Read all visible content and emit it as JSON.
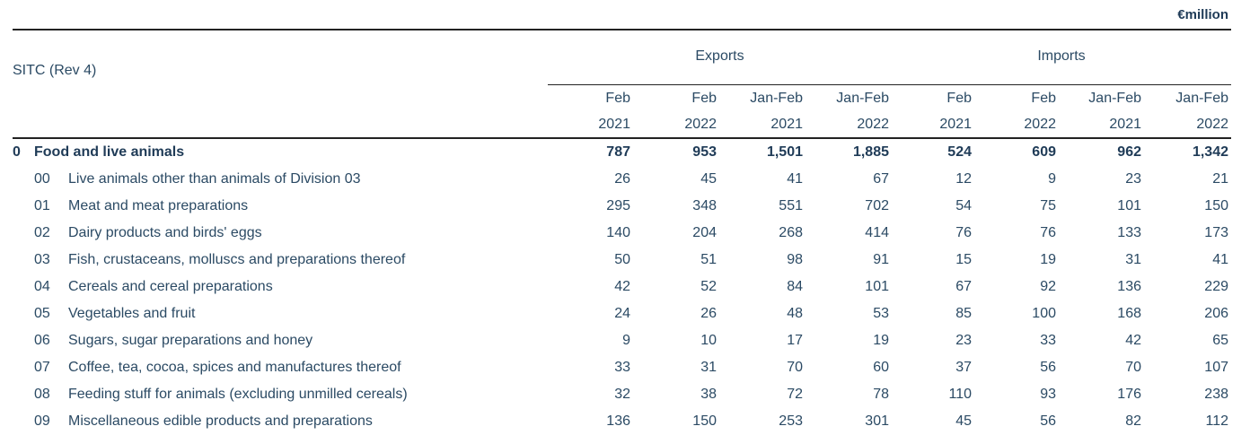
{
  "unit_label": "€million",
  "header": {
    "sitc_label": "SITC (Rev 4)",
    "groups": [
      "Exports",
      "Imports"
    ],
    "period_top": [
      "Feb",
      "Feb",
      "Jan-Feb",
      "Jan-Feb",
      "Feb",
      "Feb",
      "Jan-Feb",
      "Jan-Feb"
    ],
    "period_year": [
      "2021",
      "2022",
      "2021",
      "2022",
      "2021",
      "2022",
      "2021",
      "2022"
    ]
  },
  "rows": [
    {
      "code": "0",
      "label": "Food and live animals",
      "values": [
        "787",
        "953",
        "1,501",
        "1,885",
        "524",
        "609",
        "962",
        "1,342"
      ]
    },
    {
      "code": "00",
      "label": "Live animals other than animals of Division 03",
      "values": [
        "26",
        "45",
        "41",
        "67",
        "12",
        "9",
        "23",
        "21"
      ]
    },
    {
      "code": "01",
      "label": "Meat and meat preparations",
      "values": [
        "295",
        "348",
        "551",
        "702",
        "54",
        "75",
        "101",
        "150"
      ]
    },
    {
      "code": "02",
      "label": "Dairy products and birds' eggs",
      "values": [
        "140",
        "204",
        "268",
        "414",
        "76",
        "76",
        "133",
        "173"
      ]
    },
    {
      "code": "03",
      "label": "Fish, crustaceans, molluscs and preparations thereof",
      "values": [
        "50",
        "51",
        "98",
        "91",
        "15",
        "19",
        "31",
        "41"
      ]
    },
    {
      "code": "04",
      "label": "Cereals and cereal preparations",
      "values": [
        "42",
        "52",
        "84",
        "101",
        "67",
        "92",
        "136",
        "229"
      ]
    },
    {
      "code": "05",
      "label": "Vegetables and fruit",
      "values": [
        "24",
        "26",
        "48",
        "53",
        "85",
        "100",
        "168",
        "206"
      ]
    },
    {
      "code": "06",
      "label": "Sugars, sugar preparations and honey",
      "values": [
        "9",
        "10",
        "17",
        "19",
        "23",
        "33",
        "42",
        "65"
      ]
    },
    {
      "code": "07",
      "label": "Coffee, tea, cocoa, spices and manufactures thereof",
      "values": [
        "33",
        "31",
        "70",
        "60",
        "37",
        "56",
        "70",
        "107"
      ]
    },
    {
      "code": "08",
      "label": "Feeding stuff for animals (excluding unmilled cereals)",
      "values": [
        "32",
        "38",
        "72",
        "78",
        "110",
        "93",
        "176",
        "238"
      ]
    },
    {
      "code": "09",
      "label": "Miscellaneous edible products and preparations",
      "values": [
        "136",
        "150",
        "253",
        "301",
        "45",
        "56",
        "82",
        "112"
      ]
    }
  ]
}
